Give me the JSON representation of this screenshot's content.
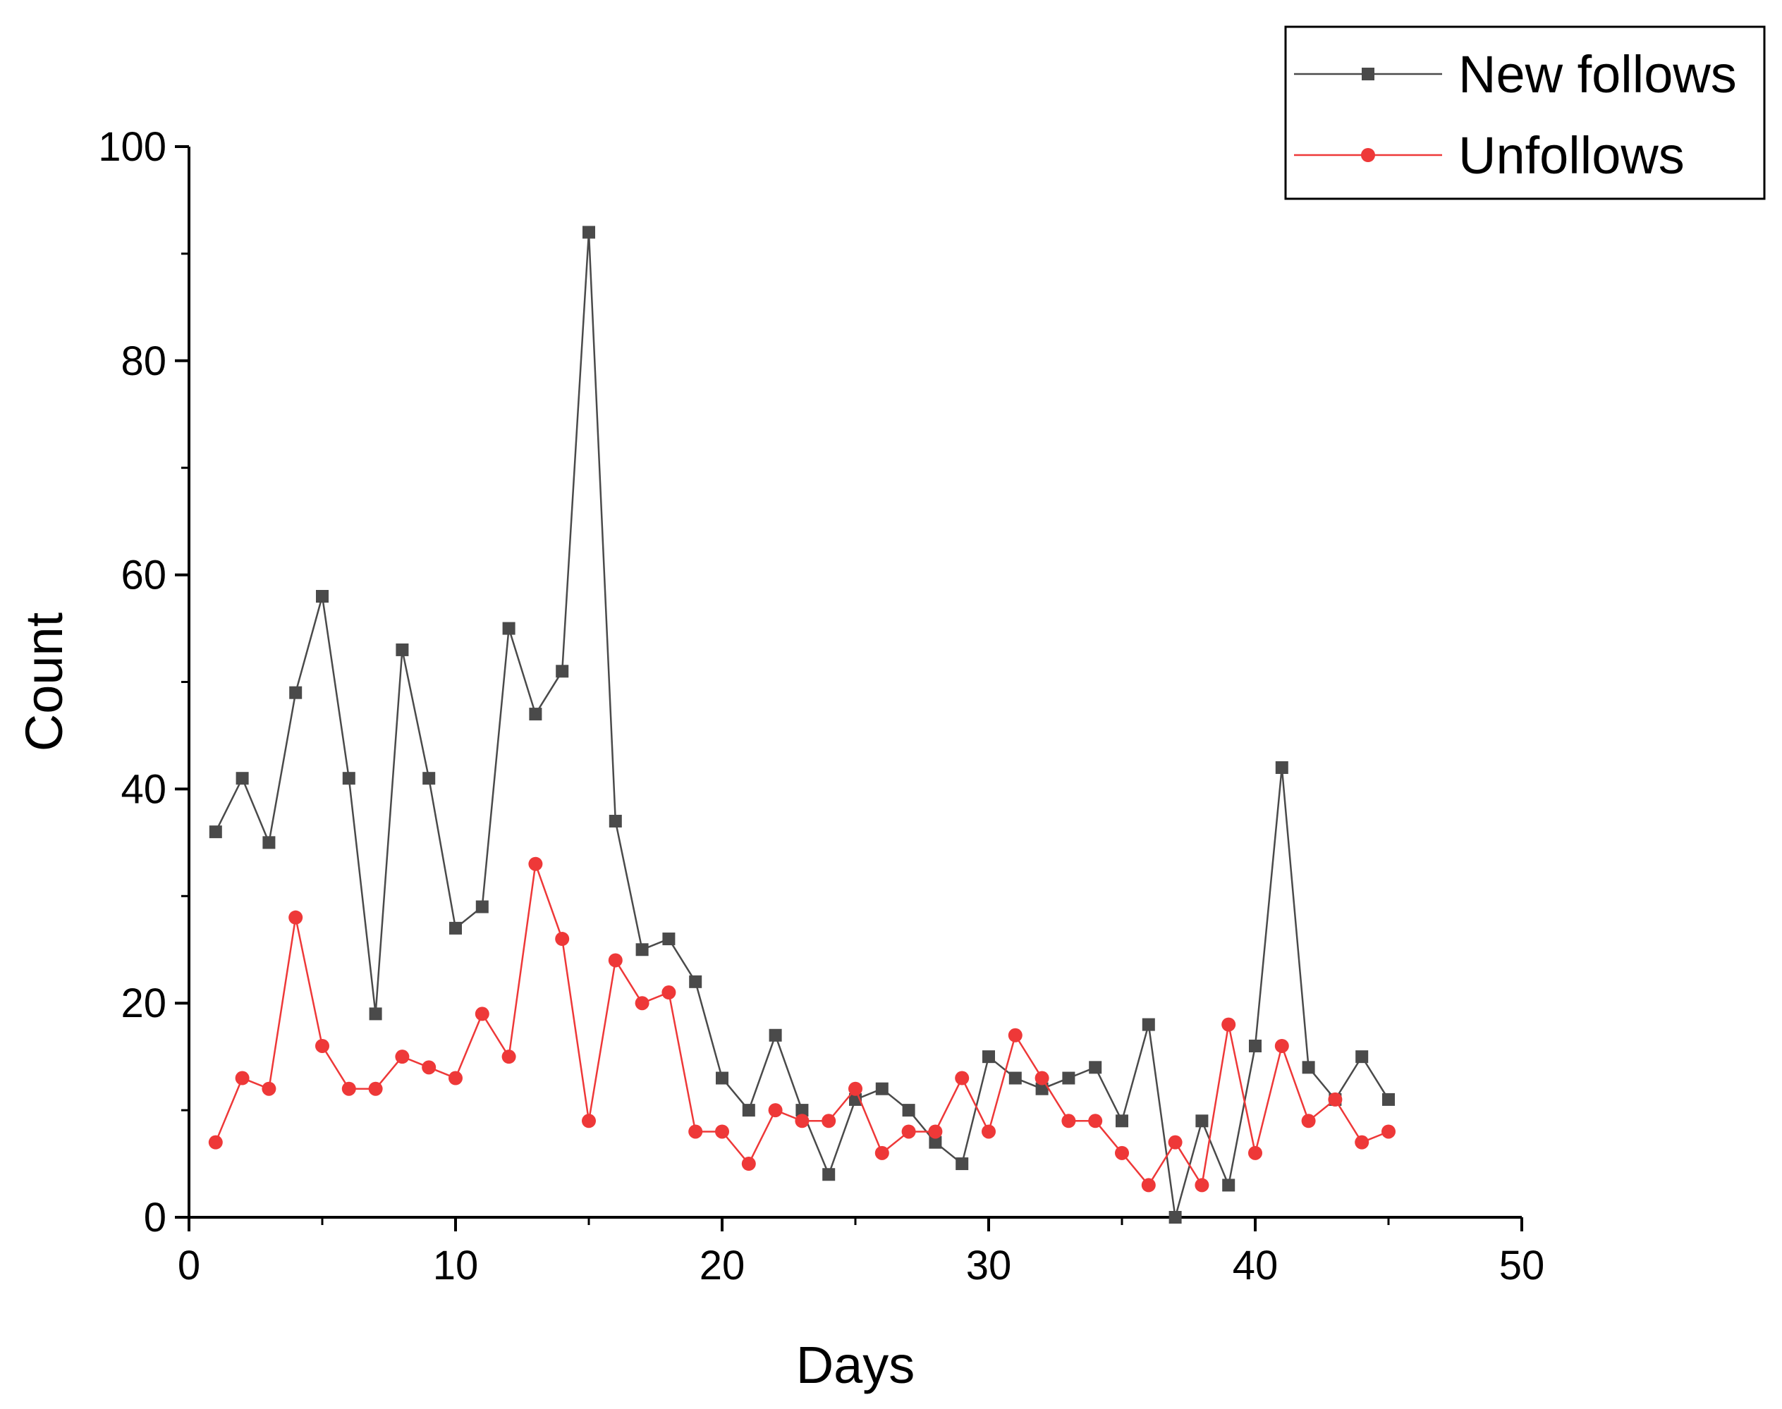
{
  "chart_data": {
    "type": "line",
    "title": "",
    "xlabel": "Days",
    "ylabel": "Count",
    "xlim": [
      0,
      50
    ],
    "ylim": [
      0,
      100
    ],
    "xticks": [
      0,
      10,
      20,
      30,
      40,
      50
    ],
    "yticks": [
      0,
      20,
      40,
      60,
      80,
      100
    ],
    "grid": false,
    "legend_position": "top-right",
    "x": [
      1,
      2,
      3,
      4,
      5,
      6,
      7,
      8,
      9,
      10,
      11,
      12,
      13,
      14,
      15,
      16,
      17,
      18,
      19,
      20,
      21,
      22,
      23,
      24,
      25,
      26,
      27,
      28,
      29,
      30,
      31,
      32,
      33,
      34,
      35,
      36,
      37,
      38,
      39,
      40,
      41,
      42,
      43,
      44,
      45
    ],
    "series": [
      {
        "name": "New follows",
        "color": "#4a4a4a",
        "marker": "square",
        "values": [
          36,
          41,
          35,
          49,
          58,
          41,
          19,
          53,
          41,
          27,
          29,
          55,
          47,
          51,
          92,
          37,
          25,
          26,
          22,
          13,
          10,
          17,
          10,
          4,
          11,
          12,
          10,
          7,
          5,
          15,
          13,
          12,
          13,
          14,
          9,
          18,
          0,
          9,
          3,
          16,
          42,
          14,
          11,
          15,
          11
        ]
      },
      {
        "name": "Unfollows",
        "color": "#ee3838",
        "marker": "circle",
        "values": [
          7,
          13,
          12,
          28,
          16,
          12,
          12,
          15,
          14,
          13,
          19,
          15,
          33,
          26,
          9,
          24,
          20,
          21,
          8,
          8,
          5,
          10,
          9,
          9,
          12,
          6,
          8,
          8,
          13,
          8,
          17,
          13,
          9,
          9,
          6,
          3,
          7,
          3,
          18,
          6,
          16,
          9,
          11,
          7,
          8
        ]
      }
    ]
  }
}
